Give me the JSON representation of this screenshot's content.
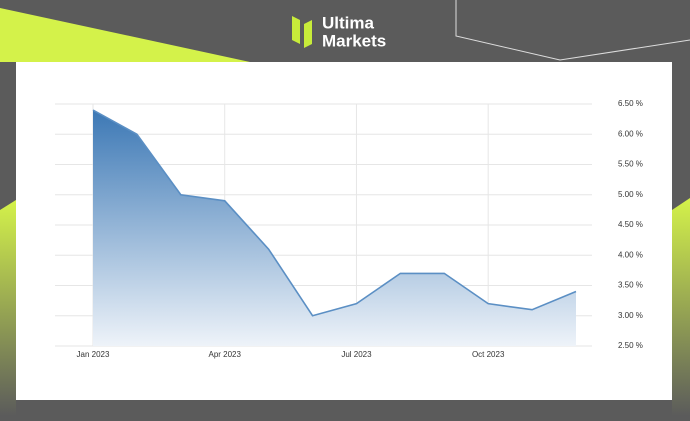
{
  "logo": {
    "line1": "Ultima",
    "line2": "Markets"
  },
  "chart_data": {
    "type": "area",
    "categories": [
      "Jan 2023",
      null,
      null,
      "Apr 2023",
      null,
      null,
      "Jul 2023",
      null,
      null,
      "Oct 2023",
      null,
      null
    ],
    "values": [
      6.4,
      6.0,
      5.0,
      4.9,
      4.1,
      3.0,
      3.2,
      3.7,
      3.7,
      3.2,
      3.1,
      3.4
    ],
    "color": "#5b8fc4",
    "ylim": [
      2.5,
      6.5
    ],
    "yticks": [
      {
        "value": 2.5,
        "label": "2.50 %"
      },
      {
        "value": 3.0,
        "label": "3.00 %"
      },
      {
        "value": 3.5,
        "label": "3.50 %"
      },
      {
        "value": 4.0,
        "label": "4.00 %"
      },
      {
        "value": 4.5,
        "label": "4.50 %"
      },
      {
        "value": 5.0,
        "label": "5.00 %"
      },
      {
        "value": 5.5,
        "label": "5.50 %"
      },
      {
        "value": 6.0,
        "label": "6.00 %"
      },
      {
        "value": 6.5,
        "label": "6.50 %"
      }
    ],
    "grid": true
  }
}
